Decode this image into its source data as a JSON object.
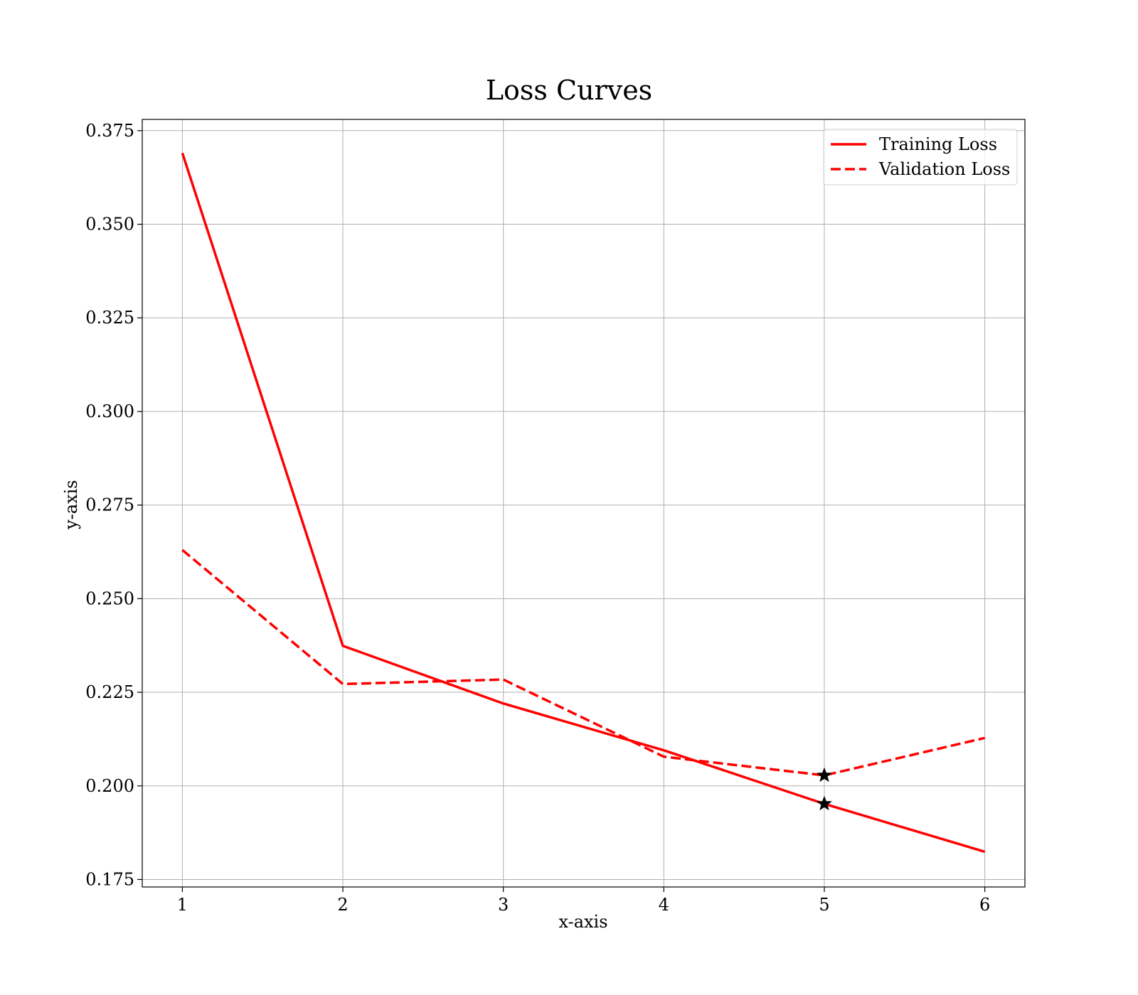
{
  "chart_data": {
    "type": "line",
    "title": "Loss Curves",
    "xlabel": "x-axis",
    "ylabel": "y-axis",
    "x": [
      1,
      2,
      3,
      4,
      5,
      6
    ],
    "xlim": [
      0.75,
      6.25
    ],
    "ylim": [
      0.173,
      0.378
    ],
    "x_ticks": [
      "1",
      "2",
      "3",
      "4",
      "5",
      "6"
    ],
    "y_ticks": [
      "0.175",
      "0.200",
      "0.225",
      "0.250",
      "0.275",
      "0.300",
      "0.325",
      "0.350",
      "0.375"
    ],
    "grid": true,
    "legend_position": "top-right",
    "series": [
      {
        "name": "Training Loss",
        "values": [
          0.369,
          0.2374,
          0.222,
          0.2095,
          0.1952,
          0.1824
        ],
        "color": "#ff0000",
        "style": "solid"
      },
      {
        "name": "Validation Loss",
        "values": [
          0.263,
          0.2272,
          0.2284,
          0.2078,
          0.2028,
          0.2128
        ],
        "color": "#ff0000",
        "style": "dashed"
      }
    ],
    "markers": [
      {
        "series": "Validation Loss",
        "x": 5,
        "y": 0.2028,
        "symbol": "star",
        "color": "#000000"
      },
      {
        "series": "Training Loss",
        "x": 5,
        "y": 0.1952,
        "symbol": "star",
        "color": "#000000"
      }
    ]
  }
}
